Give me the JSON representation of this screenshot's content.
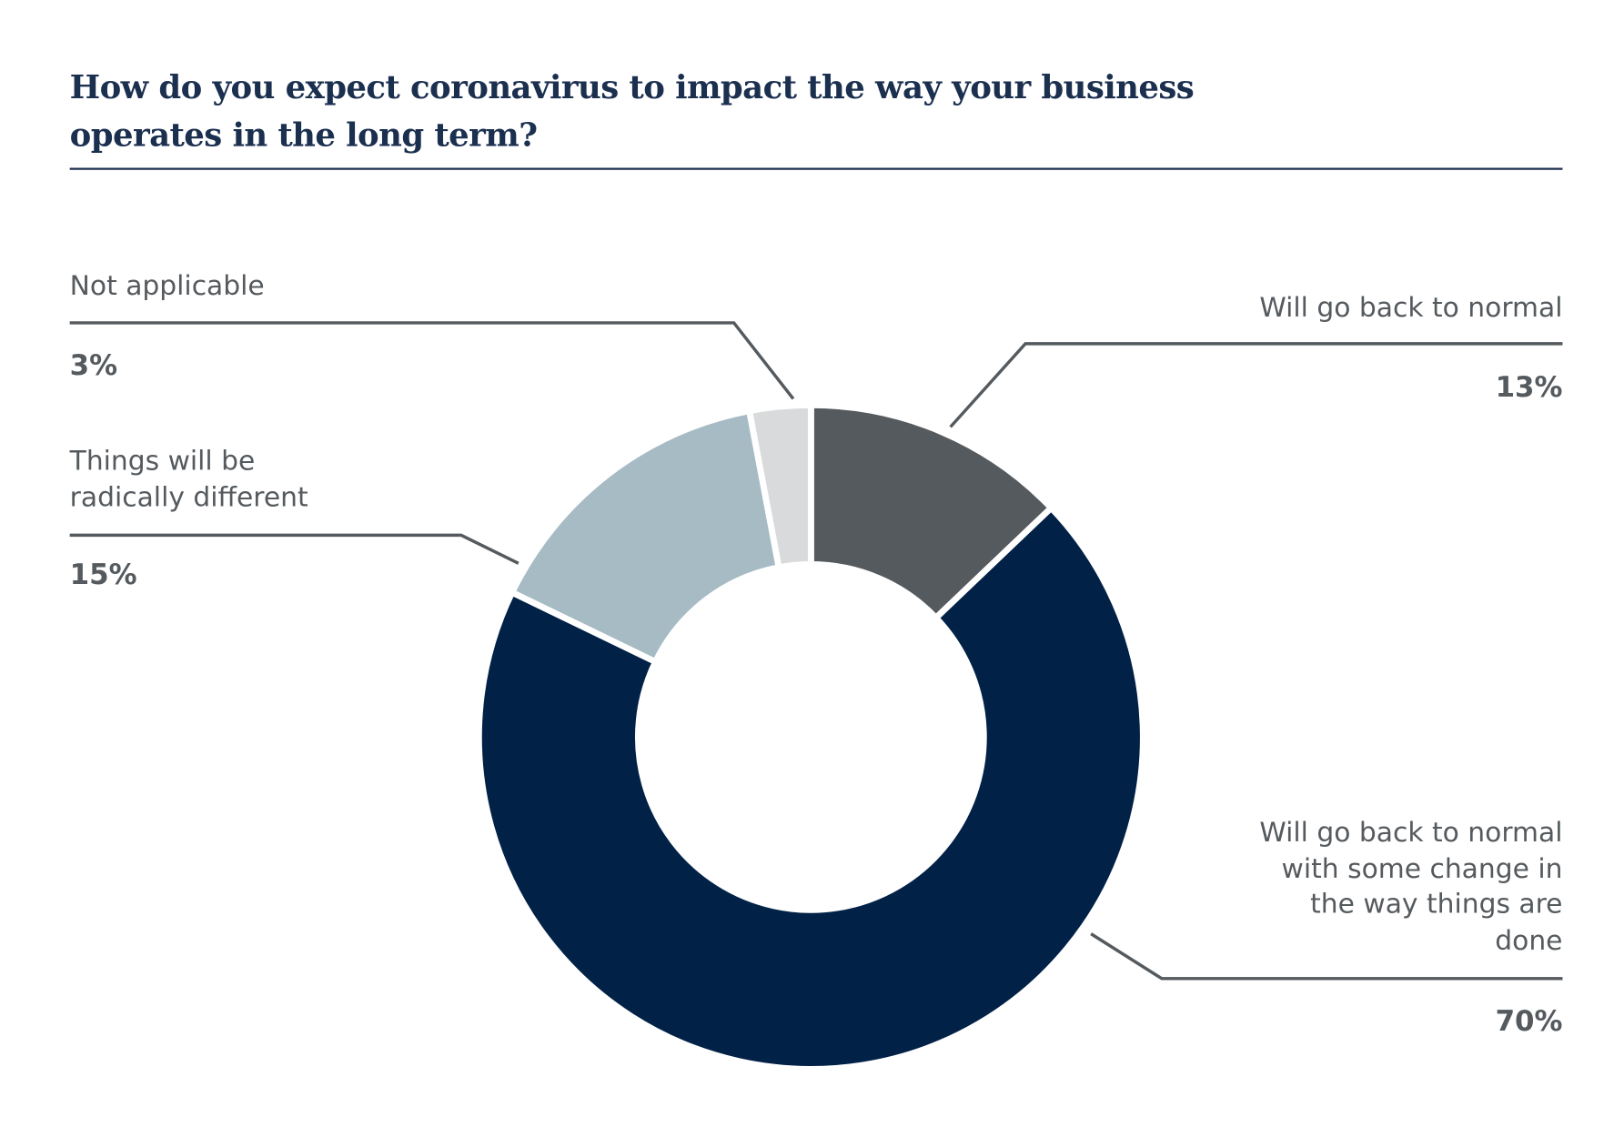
{
  "chart_data": {
    "type": "pie",
    "donut": true,
    "title_lines": [
      "How do you expect coronavirus to impact the way your business",
      "operates in the long term?"
    ],
    "slices": [
      {
        "label_lines": [
          "Will go back to normal"
        ],
        "value": 13,
        "value_label": "13%",
        "color": "#555a5e"
      },
      {
        "label_lines": [
          "Will go back to normal",
          "with some change in",
          "the way things are",
          "done"
        ],
        "value": 70,
        "value_label": "70%",
        "color": "#012147"
      },
      {
        "label_lines": [
          "Things will be",
          "radically different"
        ],
        "value": 15,
        "value_label": "15%",
        "color": "#a7bbc5"
      },
      {
        "label_lines": [
          "Not applicable"
        ],
        "value": 3,
        "value_label": "3%",
        "color": "#d9dadb"
      }
    ],
    "start_angle": "top",
    "direction": "clockwise"
  }
}
